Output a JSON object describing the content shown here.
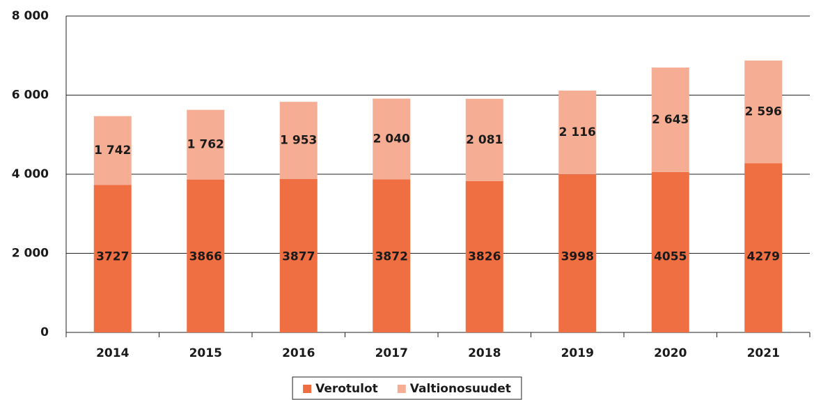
{
  "chart_data": {
    "type": "stacked_bar",
    "categories": [
      "2014",
      "2015",
      "2016",
      "2017",
      "2018",
      "2019",
      "2020",
      "2021"
    ],
    "series": [
      {
        "name": "Verotulot",
        "color": "#ef6e42",
        "values": [
          3727,
          3866,
          3877,
          3872,
          3826,
          3998,
          4055,
          4279
        ]
      },
      {
        "name": "Valtionosuudet",
        "color": "#f5ad94",
        "values": [
          1742,
          1762,
          1953,
          2040,
          2081,
          2116,
          2643,
          2596
        ],
        "value_labels": [
          "1 742",
          "1 762",
          "1 953",
          "2 040",
          "2 081",
          "2 116",
          "2 643",
          "2 596"
        ]
      }
    ],
    "ylim": [
      0,
      8000
    ],
    "yticks": [
      {
        "value": 0,
        "label": "0"
      },
      {
        "value": 2000,
        "label": "2 000"
      },
      {
        "value": 4000,
        "label": "4 000"
      },
      {
        "value": 6000,
        "label": "6 000"
      },
      {
        "value": 8000,
        "label": "8 000"
      }
    ],
    "grid": true,
    "legend": "bottom"
  }
}
